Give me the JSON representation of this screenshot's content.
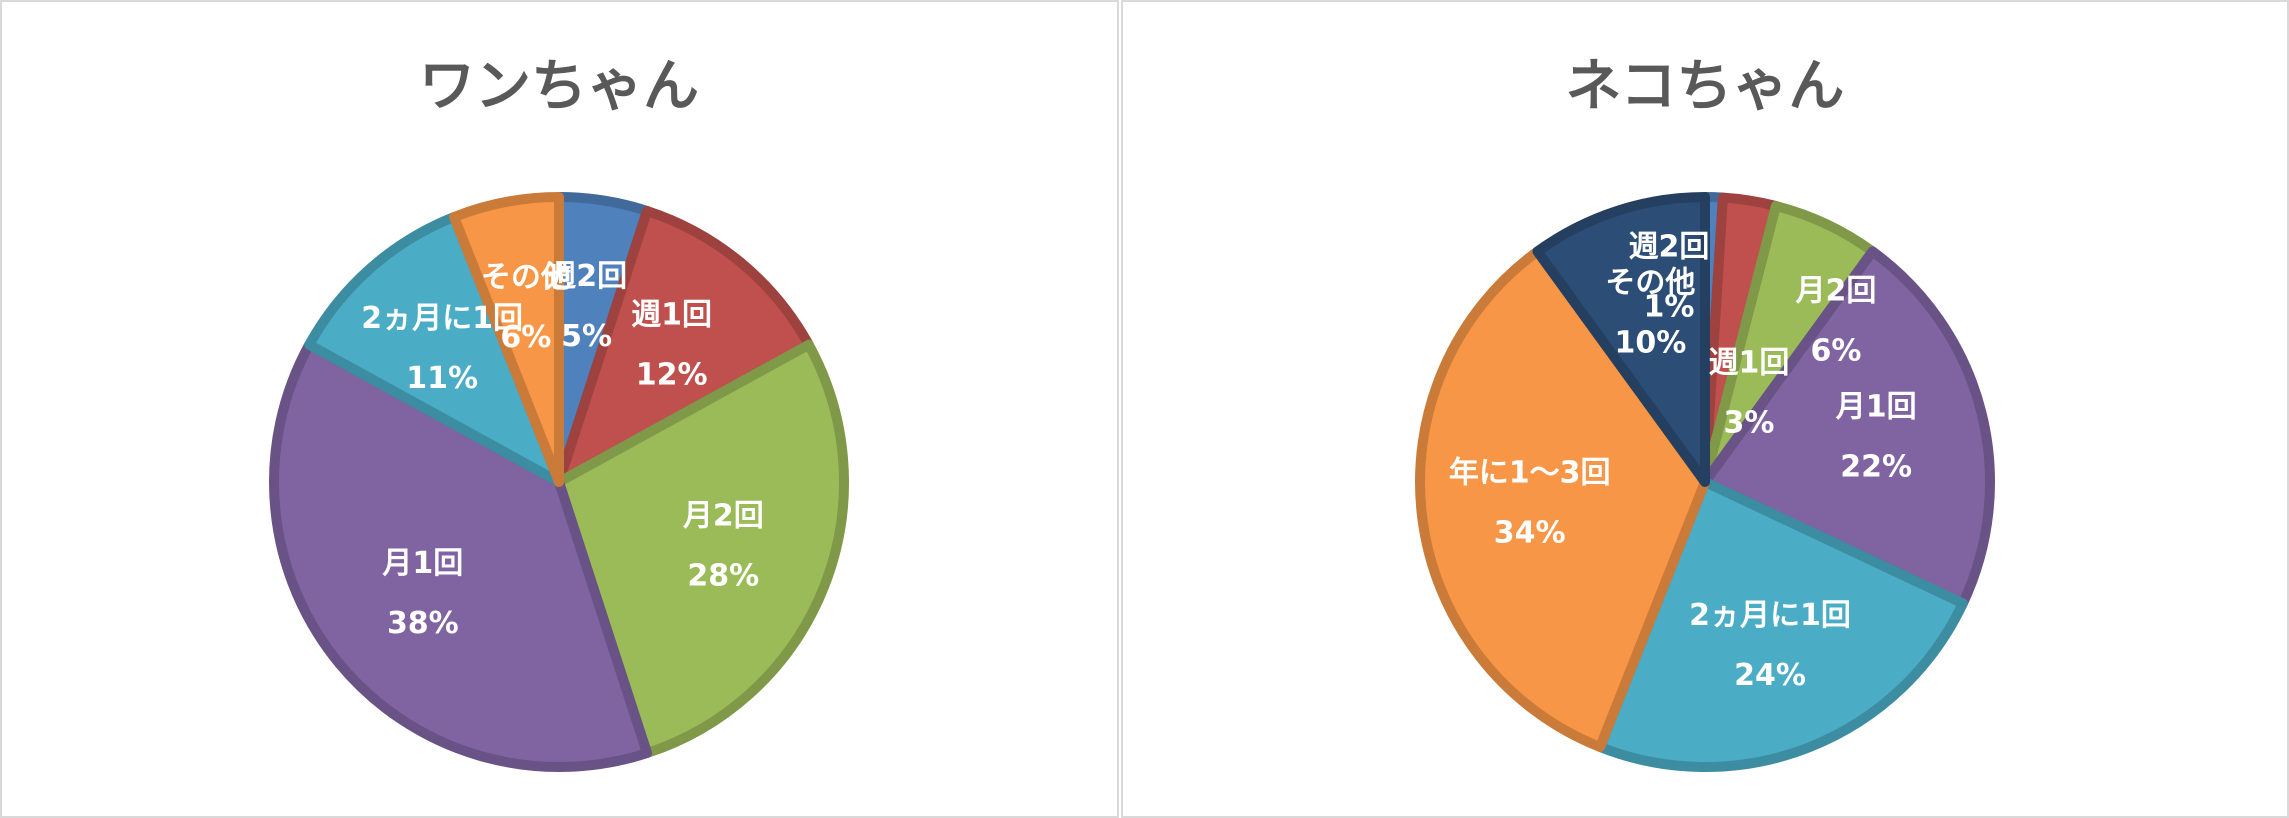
{
  "chart_data": [
    {
      "type": "pie",
      "title": "ワンちゃん",
      "categories": [
        "週2回",
        "週1回",
        "月2回",
        "月1回",
        "2ヵ月に1回",
        "その他"
      ],
      "values": [
        5,
        12,
        28,
        38,
        11,
        6
      ],
      "value_labels": [
        "5%",
        "12%",
        "28%",
        "38%",
        "11%",
        "6%"
      ],
      "colors": [
        "#4f81bd",
        "#c0504d",
        "#9bbb59",
        "#8064a2",
        "#4bacc6",
        "#f79646"
      ]
    },
    {
      "type": "pie",
      "title": "ネコちゃん",
      "categories": [
        "週2回",
        "週1回",
        "月2回",
        "月1回",
        "2ヵ月に1回",
        "年に1～3回",
        "その他"
      ],
      "values": [
        1,
        3,
        6,
        22,
        24,
        34,
        10
      ],
      "value_labels": [
        "1%",
        "3%",
        "6%",
        "22%",
        "24%",
        "34%",
        "10%"
      ],
      "colors": [
        "#4f81bd",
        "#c0504d",
        "#9bbb59",
        "#8064a2",
        "#4bacc6",
        "#f79646",
        "#2c4d75"
      ]
    }
  ]
}
